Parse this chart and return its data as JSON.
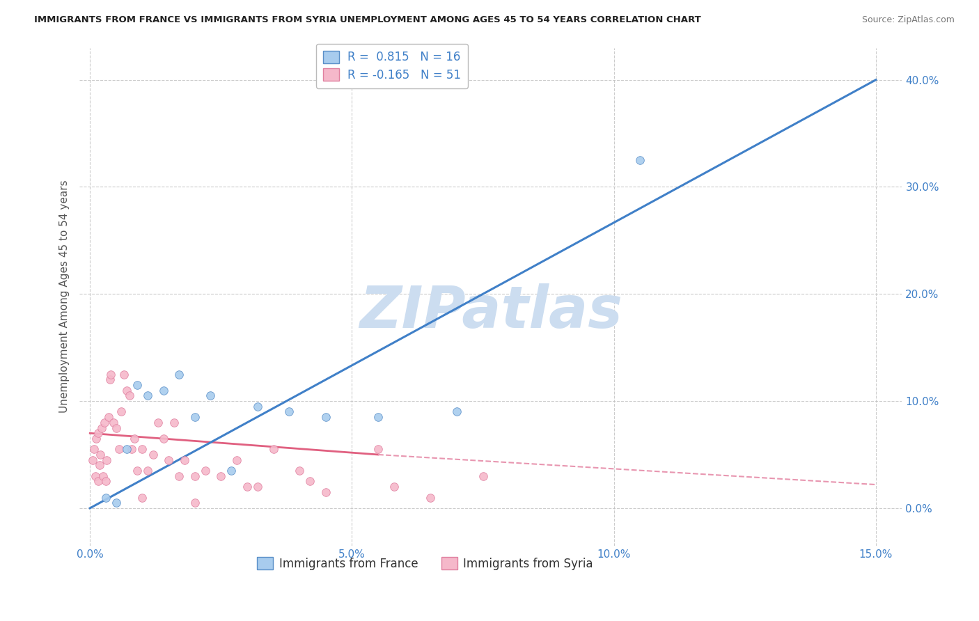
{
  "title": "IMMIGRANTS FROM FRANCE VS IMMIGRANTS FROM SYRIA UNEMPLOYMENT AMONG AGES 45 TO 54 YEARS CORRELATION CHART",
  "source": "Source: ZipAtlas.com",
  "ylabel": "Unemployment Among Ages 45 to 54 years",
  "xlim": [
    -0.2,
    15.5
  ],
  "ylim": [
    -3.5,
    43.0
  ],
  "xtick_vals": [
    0.0,
    5.0,
    10.0,
    15.0
  ],
  "ytick_vals": [
    0.0,
    10.0,
    20.0,
    30.0,
    40.0
  ],
  "france_R": 0.815,
  "france_N": 16,
  "syria_R": -0.165,
  "syria_N": 51,
  "france_dot_color": "#a8ccee",
  "france_edge_color": "#5a8fc8",
  "syria_dot_color": "#f5b8ca",
  "syria_edge_color": "#e080a0",
  "france_line_color": "#4080c8",
  "syria_line_solid_color": "#e06080",
  "syria_line_dash_color": "#e896b0",
  "tick_color": "#4080c8",
  "bg_color": "#ffffff",
  "grid_color": "#c0c0c0",
  "title_color": "#222222",
  "watermark_color": "#ccddf0",
  "legend_label_france": "Immigrants from France",
  "legend_label_syria": "Immigrants from Syria",
  "france_line_x0": 0.0,
  "france_line_y0": 0.0,
  "france_line_x1": 15.0,
  "france_line_y1": 40.0,
  "syria_solid_x0": 0.0,
  "syria_solid_y0": 7.0,
  "syria_solid_x1": 5.5,
  "syria_solid_y1": 5.0,
  "syria_dash_x0": 5.5,
  "syria_dash_y0": 5.0,
  "syria_dash_x1": 15.0,
  "syria_dash_y1": 2.2,
  "france_scatter_x": [
    0.3,
    0.5,
    0.7,
    0.9,
    1.1,
    1.4,
    1.7,
    2.0,
    2.3,
    2.7,
    3.2,
    3.8,
    4.5,
    5.5,
    7.0,
    10.5
  ],
  "france_scatter_y": [
    1.0,
    0.5,
    5.5,
    11.5,
    10.5,
    11.0,
    12.5,
    8.5,
    10.5,
    3.5,
    9.5,
    9.0,
    8.5,
    8.5,
    9.0,
    32.5
  ],
  "syria_scatter_x": [
    0.05,
    0.08,
    0.1,
    0.12,
    0.15,
    0.15,
    0.18,
    0.2,
    0.22,
    0.25,
    0.28,
    0.3,
    0.32,
    0.35,
    0.38,
    0.4,
    0.45,
    0.5,
    0.55,
    0.6,
    0.65,
    0.7,
    0.75,
    0.8,
    0.85,
    0.9,
    1.0,
    1.0,
    1.1,
    1.2,
    1.3,
    1.4,
    1.5,
    1.6,
    1.7,
    1.8,
    2.0,
    2.0,
    2.2,
    2.5,
    2.8,
    3.0,
    3.5,
    4.0,
    4.5,
    5.5,
    6.5,
    7.5,
    4.2,
    5.8,
    3.2
  ],
  "syria_scatter_y": [
    4.5,
    5.5,
    3.0,
    6.5,
    7.0,
    2.5,
    4.0,
    5.0,
    7.5,
    3.0,
    8.0,
    2.5,
    4.5,
    8.5,
    12.0,
    12.5,
    8.0,
    7.5,
    5.5,
    9.0,
    12.5,
    11.0,
    10.5,
    5.5,
    6.5,
    3.5,
    5.5,
    1.0,
    3.5,
    5.0,
    8.0,
    6.5,
    4.5,
    8.0,
    3.0,
    4.5,
    3.0,
    0.5,
    3.5,
    3.0,
    4.5,
    2.0,
    5.5,
    3.5,
    1.5,
    5.5,
    1.0,
    3.0,
    2.5,
    2.0,
    2.0
  ]
}
